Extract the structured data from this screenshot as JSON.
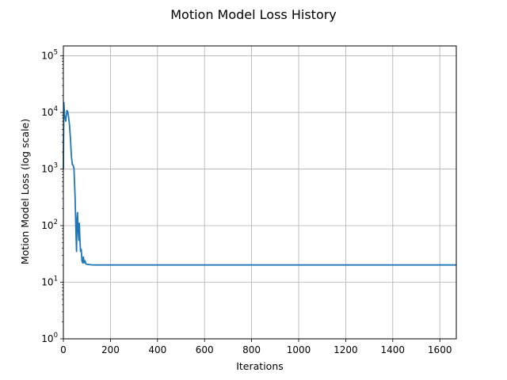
{
  "chart_data": {
    "type": "line",
    "title": "Motion Model Loss History",
    "xlabel": "Iterations",
    "ylabel": "Motion Model Loss (log scale)",
    "xlim": [
      0,
      1670
    ],
    "ylim": [
      1,
      150000
    ],
    "yscale": "log",
    "grid": true,
    "x_ticks": [
      0,
      200,
      400,
      600,
      800,
      1000,
      1200,
      1400,
      1600
    ],
    "y_ticks": [
      {
        "value": 1,
        "base": "10",
        "exp": "0"
      },
      {
        "value": 10,
        "base": "10",
        "exp": "1"
      },
      {
        "value": 100,
        "base": "10",
        "exp": "2"
      },
      {
        "value": 1000,
        "base": "10",
        "exp": "3"
      },
      {
        "value": 10000,
        "base": "10",
        "exp": "4"
      },
      {
        "value": 100000,
        "base": "10",
        "exp": "5"
      }
    ],
    "series": [
      {
        "color": "#1f77b4",
        "x": [
          0,
          2,
          5,
          10,
          15,
          18,
          22,
          26,
          30,
          34,
          38,
          40,
          45,
          50,
          53,
          56,
          58,
          60,
          63,
          66,
          68,
          70,
          73,
          76,
          79,
          82,
          85,
          88,
          92,
          96,
          100,
          105,
          110,
          120,
          140,
          200,
          400,
          800,
          1200,
          1670
        ],
        "y": [
          1000,
          15000,
          9000,
          7000,
          10800,
          10500,
          8500,
          6000,
          3500,
          1700,
          1200,
          1200,
          1050,
          300,
          90,
          35,
          130,
          170,
          80,
          55,
          110,
          60,
          35,
          38,
          24,
          22,
          28,
          22,
          24,
          21,
          20.8,
          20.6,
          20.5,
          20.3,
          20.2,
          20.2,
          20.2,
          20.2,
          20.2,
          20.2
        ]
      }
    ]
  }
}
